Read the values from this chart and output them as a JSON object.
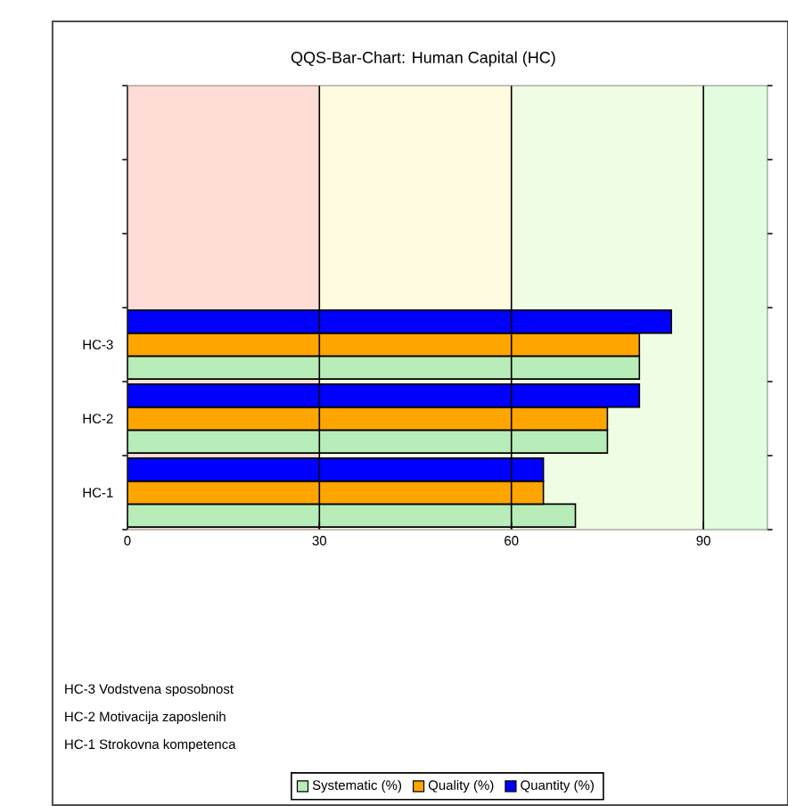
{
  "chart_data": {
    "type": "bar",
    "orientation": "horizontal",
    "title": "QQS-Bar-Chart: Human Capital (HC)",
    "categories": [
      null,
      null,
      null,
      "HC-3",
      "HC-2",
      "HC-1"
    ],
    "series": [
      {
        "name": "Systematic (%)",
        "color": "#b8ecb8",
        "values": [
          null,
          null,
          null,
          80,
          75,
          70
        ]
      },
      {
        "name": "Quality (%)",
        "color": "#ffa500",
        "values": [
          null,
          null,
          null,
          80,
          75,
          65
        ]
      },
      {
        "name": "Quantity (%)",
        "color": "#0000ff",
        "values": [
          null,
          null,
          null,
          85,
          80,
          65
        ]
      }
    ],
    "xlim": [
      0,
      100
    ],
    "xticks": [
      0,
      30,
      60,
      90
    ],
    "grid": "x",
    "legend": "bottom",
    "bands": [
      {
        "axis": "x",
        "from": 0,
        "to": 30,
        "color": "#ffdcd6"
      },
      {
        "axis": "x",
        "from": 30,
        "to": 60,
        "color": "#fffbe0"
      },
      {
        "axis": "x",
        "from": 60,
        "to": 90,
        "color": "#effde4"
      },
      {
        "axis": "x",
        "from": 90,
        "to": 100,
        "color": "#e2fce0"
      }
    ],
    "annotations": [
      "HC-3 Vodstvena sposobnost",
      "HC-2 Motivacija zaposlenih",
      "HC-1 Strokovna kompetenca"
    ]
  }
}
